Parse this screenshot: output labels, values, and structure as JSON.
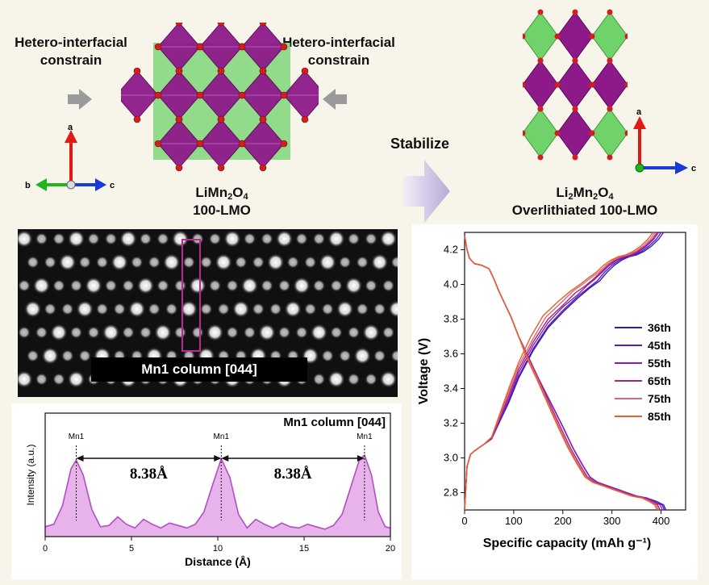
{
  "top_left": {
    "left_label": [
      "Hetero-interfacial",
      "constrain"
    ],
    "right_label": [
      "Hetero-interfacial",
      "constrain"
    ],
    "axes": {
      "a": "a",
      "b": "b",
      "c": "c"
    },
    "compound": {
      "formula_parts": [
        "LiMn",
        "2",
        "O",
        "4"
      ],
      "name": "100-LMO"
    }
  },
  "middle": {
    "arrow_label": "Stabilize"
  },
  "top_right": {
    "axes": {
      "a": "a",
      "c": "c"
    },
    "compound": {
      "formula_parts": [
        "Li",
        "2",
        "Mn",
        "2",
        "O",
        "4"
      ],
      "name": "Overlithiated 100-LMO"
    }
  },
  "stem": {
    "caption": "Mn1 column [044]"
  },
  "colors": {
    "mn_octahedra": "#8e1a8a",
    "li_tetrahedra": "#6fd36a",
    "oxygen": "#d11f1f",
    "profile_fill": "#e7b3ea",
    "profile_line": "#b04fc0",
    "box": "#c0288f"
  },
  "profile": {
    "title": "Mn1 column [044]",
    "peak_labels": [
      "Mn1",
      "Mn1",
      "Mn1"
    ],
    "spacing_labels": [
      "8.38Å",
      "8.38Å"
    ],
    "xlabel": "Distance (Å)",
    "ylabel": "Intensity (a.u.)"
  },
  "chart_data": [
    {
      "type": "area",
      "title": "Mn1 column [044]",
      "xlabel": "Distance (Å)",
      "ylabel": "Intensity (a.u.)",
      "xlim": [
        0,
        20
      ],
      "ylim": [
        0,
        1
      ],
      "xticks": [
        "0",
        "5",
        "10",
        "15",
        "20"
      ],
      "x": [
        0,
        0.5,
        1,
        1.5,
        1.8,
        2.2,
        2.7,
        3.2,
        3.7,
        4.2,
        4.7,
        5.2,
        5.7,
        6.2,
        6.7,
        7.2,
        7.7,
        8.2,
        8.7,
        9.2,
        9.7,
        10.2,
        10.7,
        11.2,
        11.7,
        12.2,
        12.7,
        13.2,
        13.7,
        14.2,
        14.7,
        15.2,
        15.7,
        16.2,
        16.7,
        17.2,
        17.7,
        18.2,
        18.5,
        18.9,
        19.3,
        19.7,
        20
      ],
      "y": [
        0.08,
        0.1,
        0.25,
        0.55,
        0.62,
        0.5,
        0.22,
        0.08,
        0.09,
        0.16,
        0.1,
        0.07,
        0.14,
        0.1,
        0.07,
        0.11,
        0.09,
        0.07,
        0.1,
        0.2,
        0.42,
        0.63,
        0.48,
        0.18,
        0.07,
        0.14,
        0.1,
        0.07,
        0.11,
        0.08,
        0.07,
        0.1,
        0.08,
        0.06,
        0.09,
        0.18,
        0.4,
        0.62,
        0.66,
        0.5,
        0.2,
        0.08,
        0.07
      ],
      "peaks": [
        1.8,
        10.2,
        18.5
      ],
      "spacing": [
        8.38,
        8.38
      ]
    },
    {
      "type": "line",
      "xlabel": "Specific capacity (mAh g⁻¹)",
      "ylabel": "Voltage (V)",
      "xlim": [
        0,
        450
      ],
      "ylim": [
        2.7,
        4.3
      ],
      "xticks": [
        "0",
        "100",
        "200",
        "300",
        "400"
      ],
      "yticks": [
        "2.8",
        "3.0",
        "3.2",
        "3.4",
        "3.6",
        "3.8",
        "4.0",
        "4.2"
      ],
      "legend_position": "right",
      "series": [
        {
          "name": "36th",
          "color": "#3a1ab0",
          "charge_x": [
            0,
            5,
            12,
            20,
            30,
            40,
            55,
            70,
            90,
            110,
            140,
            170,
            200,
            230,
            255,
            275,
            290,
            305,
            320,
            335,
            350,
            365,
            380,
            395,
            405
          ],
          "charge_y": [
            2.7,
            2.95,
            3.02,
            3.04,
            3.06,
            3.08,
            3.11,
            3.2,
            3.32,
            3.46,
            3.62,
            3.75,
            3.84,
            3.92,
            3.98,
            4.02,
            4.07,
            4.11,
            4.14,
            4.16,
            4.17,
            4.19,
            4.22,
            4.26,
            4.3
          ],
          "discharge_x": [
            0,
            5,
            10,
            20,
            35,
            50,
            60,
            70,
            80,
            95,
            110,
            130,
            150,
            175,
            200,
            220,
            240,
            255,
            270,
            290,
            310,
            330,
            350,
            370,
            390,
            405,
            410
          ],
          "discharge_y": [
            4.28,
            4.2,
            4.15,
            4.12,
            4.11,
            4.09,
            4.03,
            3.96,
            3.9,
            3.81,
            3.7,
            3.58,
            3.46,
            3.32,
            3.18,
            3.06,
            2.96,
            2.89,
            2.86,
            2.84,
            2.82,
            2.8,
            2.78,
            2.77,
            2.75,
            2.73,
            2.7
          ]
        },
        {
          "name": "45th",
          "color": "#4d1fbf",
          "charge_x": [
            0,
            5,
            12,
            20,
            30,
            40,
            55,
            70,
            90,
            110,
            140,
            170,
            200,
            230,
            252,
            270,
            285,
            300,
            315,
            330,
            345,
            360,
            375,
            390,
            400
          ],
          "charge_y": [
            2.7,
            2.95,
            3.02,
            3.04,
            3.06,
            3.08,
            3.11,
            3.2,
            3.33,
            3.47,
            3.63,
            3.76,
            3.85,
            3.93,
            3.98,
            4.02,
            4.07,
            4.11,
            4.14,
            4.16,
            4.17,
            4.19,
            4.22,
            4.26,
            4.3
          ],
          "discharge_x": [
            0,
            5,
            10,
            20,
            35,
            50,
            60,
            70,
            80,
            95,
            110,
            130,
            150,
            175,
            200,
            220,
            240,
            255,
            270,
            290,
            310,
            330,
            350,
            370,
            390,
            402,
            407
          ],
          "discharge_y": [
            4.28,
            4.2,
            4.15,
            4.12,
            4.11,
            4.09,
            4.03,
            3.96,
            3.9,
            3.81,
            3.7,
            3.58,
            3.46,
            3.32,
            3.18,
            3.06,
            2.96,
            2.89,
            2.86,
            2.84,
            2.82,
            2.8,
            2.78,
            2.77,
            2.75,
            2.73,
            2.7
          ]
        },
        {
          "name": "55th",
          "color": "#8a1bb5",
          "charge_x": [
            0,
            5,
            12,
            20,
            30,
            40,
            55,
            70,
            90,
            110,
            140,
            170,
            200,
            230,
            248,
            265,
            280,
            295,
            310,
            325,
            340,
            355,
            370,
            385,
            395
          ],
          "charge_y": [
            2.7,
            2.95,
            3.02,
            3.04,
            3.06,
            3.08,
            3.11,
            3.21,
            3.34,
            3.49,
            3.65,
            3.78,
            3.87,
            3.94,
            3.99,
            4.03,
            4.07,
            4.11,
            4.14,
            4.16,
            4.17,
            4.19,
            4.22,
            4.26,
            4.3
          ],
          "discharge_x": [
            0,
            5,
            10,
            20,
            35,
            50,
            60,
            70,
            80,
            95,
            110,
            130,
            150,
            175,
            200,
            220,
            240,
            255,
            270,
            290,
            310,
            330,
            350,
            370,
            385,
            398,
            403
          ],
          "discharge_y": [
            4.28,
            4.2,
            4.15,
            4.12,
            4.11,
            4.09,
            4.03,
            3.96,
            3.9,
            3.81,
            3.7,
            3.58,
            3.46,
            3.32,
            3.18,
            3.06,
            2.96,
            2.89,
            2.86,
            2.84,
            2.82,
            2.8,
            2.78,
            2.77,
            2.75,
            2.73,
            2.7
          ]
        },
        {
          "name": "65th",
          "color": "#9e2a7e",
          "charge_x": [
            0,
            5,
            12,
            20,
            30,
            40,
            55,
            70,
            90,
            110,
            140,
            170,
            200,
            225,
            245,
            262,
            277,
            292,
            307,
            322,
            337,
            352,
            367,
            382,
            392
          ],
          "charge_y": [
            2.7,
            2.95,
            3.02,
            3.04,
            3.06,
            3.08,
            3.11,
            3.22,
            3.36,
            3.51,
            3.67,
            3.8,
            3.88,
            3.95,
            3.99,
            4.03,
            4.07,
            4.11,
            4.14,
            4.16,
            4.17,
            4.19,
            4.22,
            4.26,
            4.3
          ],
          "discharge_x": [
            0,
            5,
            10,
            20,
            35,
            50,
            60,
            70,
            80,
            95,
            110,
            130,
            150,
            172,
            195,
            215,
            235,
            250,
            265,
            285,
            305,
            325,
            345,
            365,
            380,
            393,
            398
          ],
          "discharge_y": [
            4.28,
            4.2,
            4.15,
            4.12,
            4.11,
            4.09,
            4.03,
            3.96,
            3.9,
            3.81,
            3.7,
            3.58,
            3.46,
            3.32,
            3.18,
            3.06,
            2.96,
            2.89,
            2.86,
            2.84,
            2.82,
            2.8,
            2.78,
            2.77,
            2.75,
            2.73,
            2.7
          ]
        },
        {
          "name": "75th",
          "color": "#d9687a",
          "charge_x": [
            0,
            5,
            12,
            20,
            30,
            40,
            55,
            70,
            90,
            110,
            140,
            165,
            195,
            220,
            240,
            258,
            273,
            288,
            303,
            318,
            333,
            348,
            363,
            378,
            388
          ],
          "charge_y": [
            2.7,
            2.95,
            3.02,
            3.04,
            3.06,
            3.08,
            3.12,
            3.23,
            3.38,
            3.53,
            3.69,
            3.81,
            3.89,
            3.96,
            4.0,
            4.04,
            4.07,
            4.11,
            4.14,
            4.16,
            4.17,
            4.19,
            4.22,
            4.26,
            4.3
          ],
          "discharge_x": [
            0,
            5,
            10,
            20,
            35,
            50,
            60,
            70,
            80,
            95,
            110,
            128,
            148,
            170,
            192,
            212,
            232,
            247,
            262,
            282,
            302,
            322,
            342,
            362,
            377,
            390,
            395
          ],
          "discharge_y": [
            4.28,
            4.2,
            4.15,
            4.12,
            4.11,
            4.09,
            4.03,
            3.96,
            3.9,
            3.81,
            3.7,
            3.58,
            3.46,
            3.32,
            3.18,
            3.06,
            2.96,
            2.89,
            2.86,
            2.84,
            2.82,
            2.8,
            2.78,
            2.77,
            2.75,
            2.73,
            2.7
          ]
        },
        {
          "name": "85th",
          "color": "#ee5a2a",
          "charge_x": [
            0,
            5,
            12,
            20,
            30,
            40,
            55,
            70,
            90,
            110,
            135,
            160,
            190,
            215,
            235,
            253,
            268,
            283,
            298,
            313,
            328,
            343,
            358,
            373,
            384
          ],
          "charge_y": [
            2.7,
            2.95,
            3.02,
            3.04,
            3.06,
            3.08,
            3.12,
            3.24,
            3.4,
            3.55,
            3.7,
            3.82,
            3.9,
            3.96,
            4.0,
            4.04,
            4.07,
            4.11,
            4.14,
            4.16,
            4.17,
            4.19,
            4.22,
            4.26,
            4.3
          ],
          "discharge_x": [
            0,
            5,
            10,
            20,
            35,
            50,
            60,
            70,
            80,
            95,
            110,
            126,
            146,
            168,
            190,
            210,
            230,
            245,
            260,
            280,
            300,
            320,
            340,
            360,
            375,
            387,
            392
          ],
          "discharge_y": [
            4.28,
            4.2,
            4.15,
            4.12,
            4.11,
            4.09,
            4.03,
            3.96,
            3.9,
            3.81,
            3.7,
            3.58,
            3.46,
            3.32,
            3.18,
            3.06,
            2.96,
            2.89,
            2.86,
            2.84,
            2.82,
            2.8,
            2.78,
            2.77,
            2.75,
            2.73,
            2.7
          ]
        }
      ]
    }
  ]
}
